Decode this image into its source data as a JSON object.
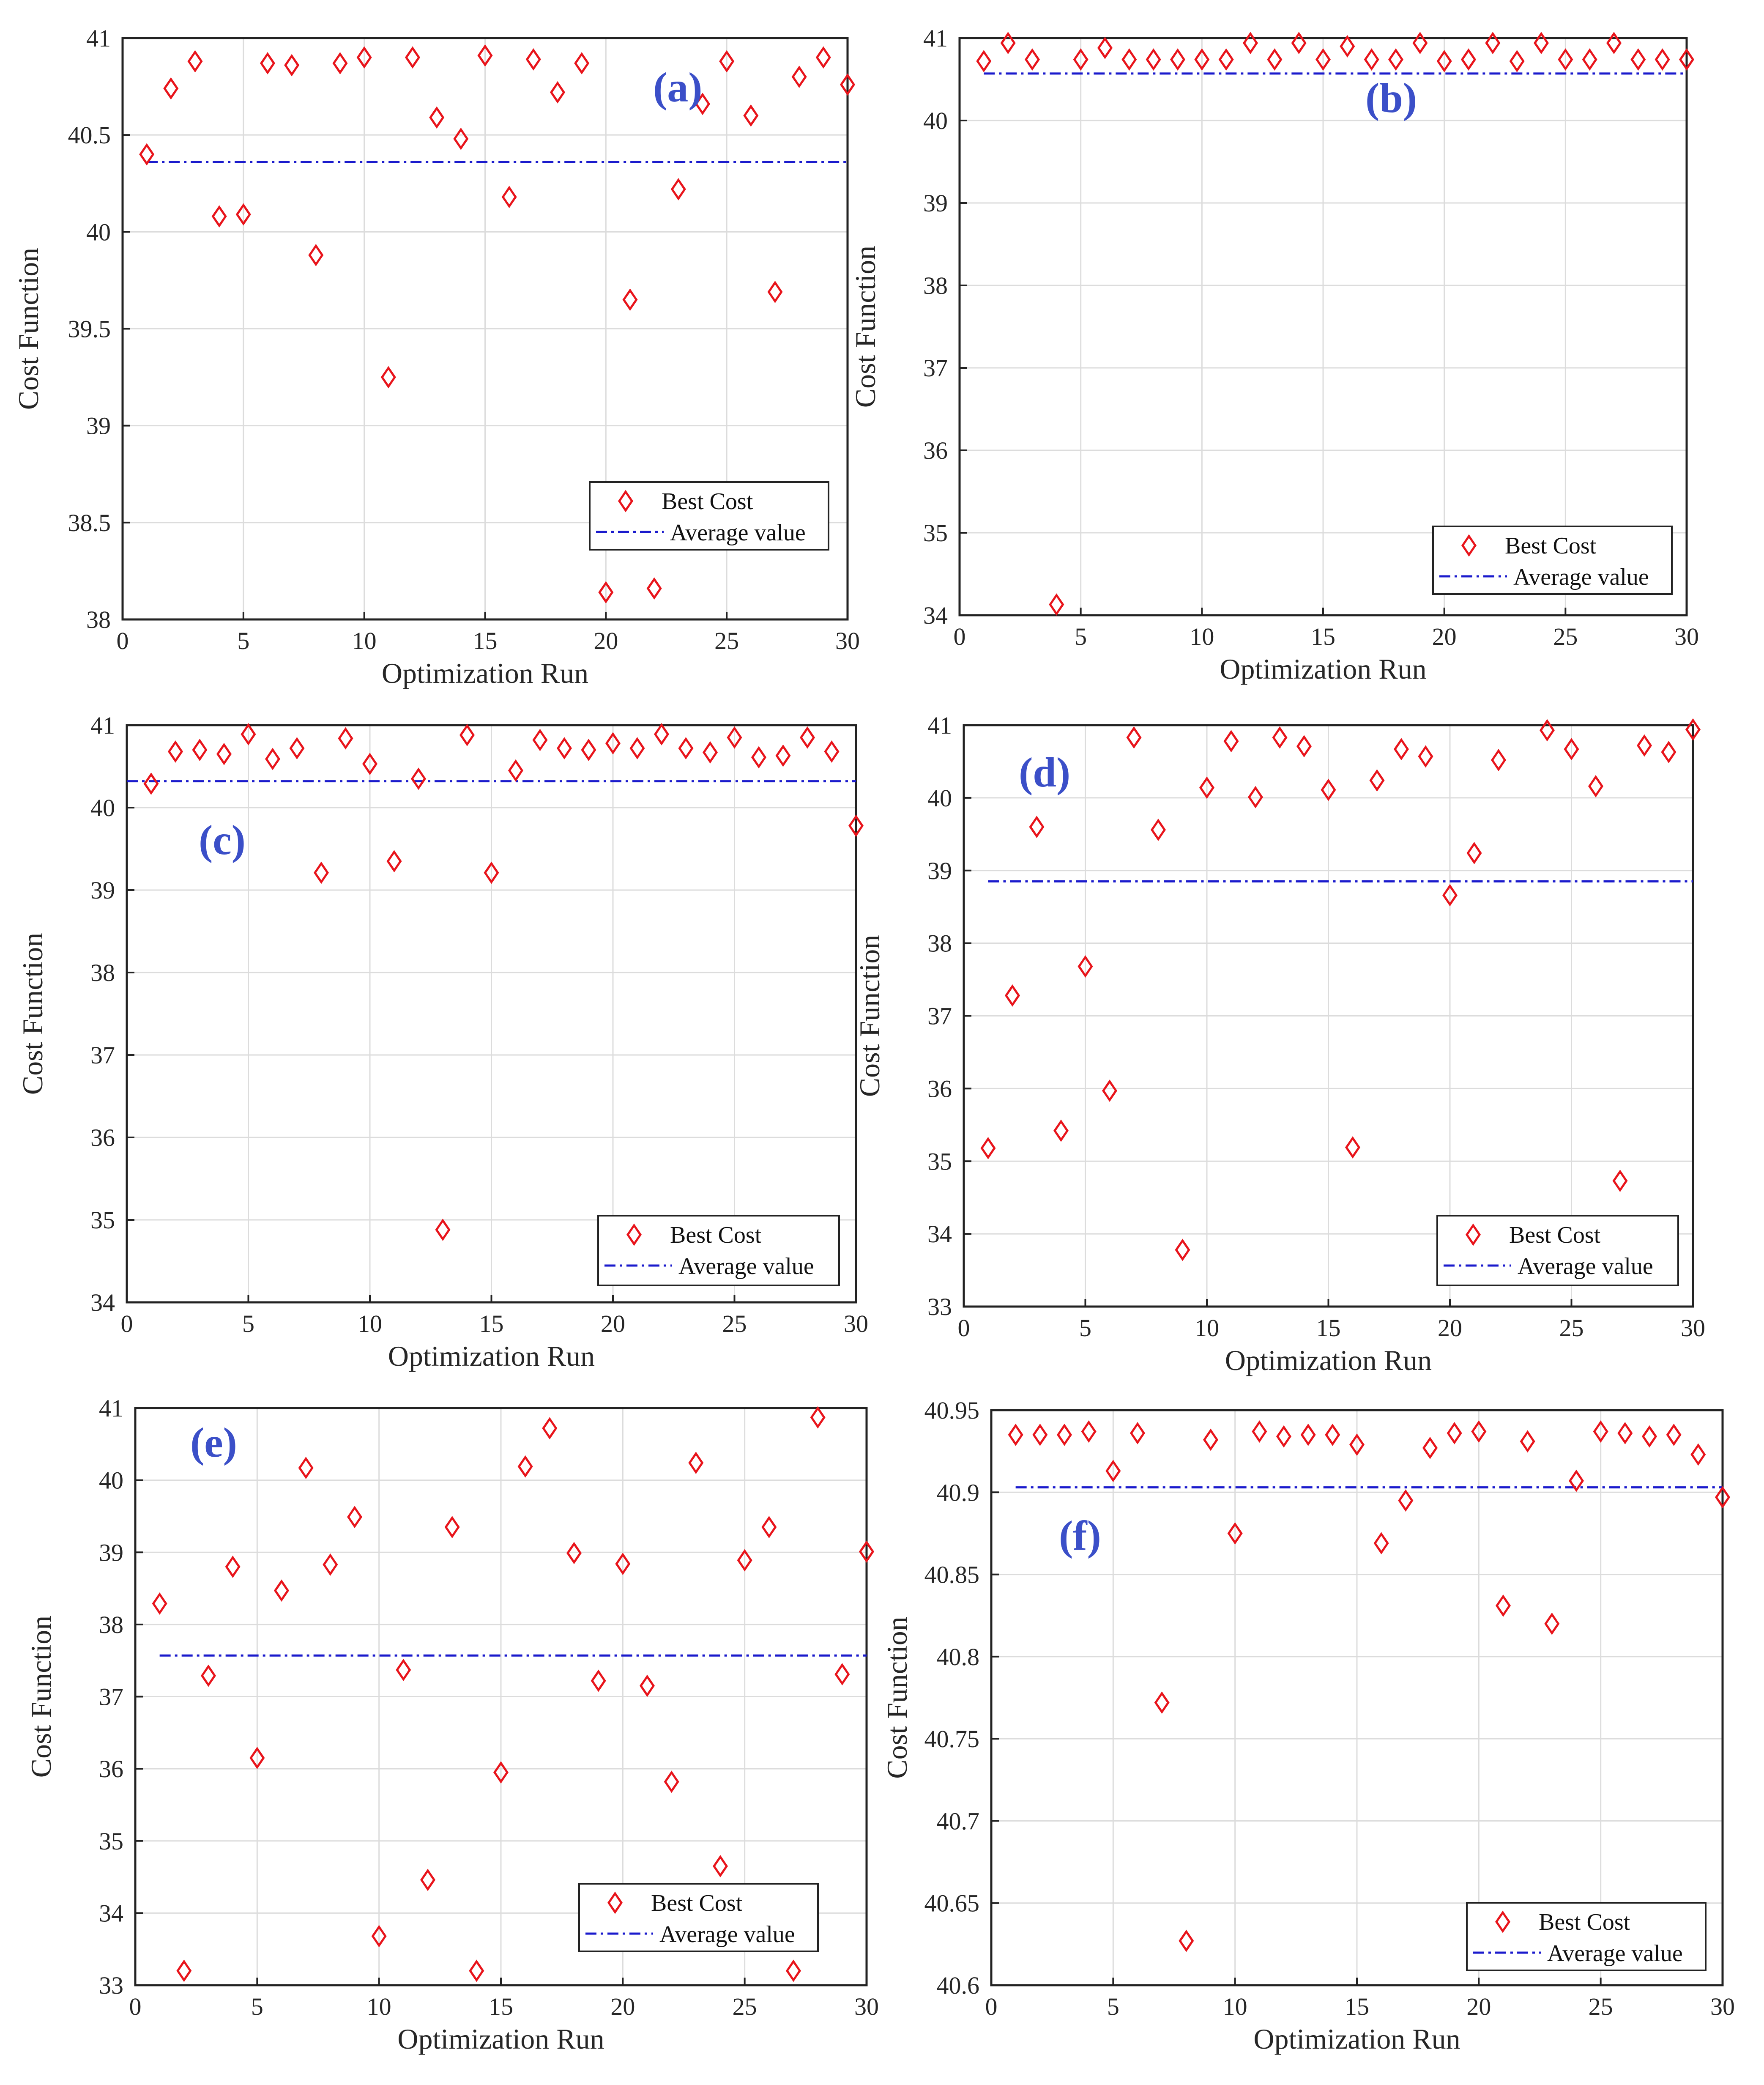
{
  "colors": {
    "best_cost": "#e8141b",
    "average": "#1a1acc"
  },
  "chart_data": [
    {
      "type": "scatter",
      "panel_label": "(a)",
      "xlabel": "Optimization Run",
      "ylabel": "Cost Function",
      "xlim": [
        0,
        30
      ],
      "ylim": [
        38,
        41
      ],
      "xticks": [
        0,
        5,
        10,
        15,
        20,
        25,
        30
      ],
      "yticks": [
        38,
        38.5,
        39,
        39.5,
        40,
        40.5,
        41
      ],
      "ytick_labels": [
        "38",
        "38.5",
        "39",
        "39.5",
        "40",
        "40.5",
        "41"
      ],
      "grid": true,
      "legend_position": "bottom-right",
      "legend": [
        "Best Cost",
        "Average value"
      ],
      "x": [
        1,
        2,
        3,
        4,
        5,
        6,
        7,
        8,
        9,
        10,
        11,
        12,
        13,
        14,
        15,
        16,
        17,
        18,
        19,
        20,
        21,
        22,
        23,
        24,
        25,
        26,
        27,
        28,
        29,
        30
      ],
      "best_cost": [
        40.4,
        40.74,
        40.88,
        40.08,
        40.09,
        40.87,
        40.86,
        39.88,
        40.87,
        40.9,
        39.25,
        40.9,
        40.59,
        40.48,
        40.91,
        40.18,
        40.89,
        40.72,
        40.87,
        38.14,
        39.65,
        38.16,
        40.22,
        40.66,
        40.88,
        40.6,
        39.69,
        40.8,
        40.9,
        40.76
      ],
      "average_value": 40.36,
      "average_x_range": [
        1,
        30
      ]
    },
    {
      "type": "scatter",
      "panel_label": "(b)",
      "xlabel": "Optimization Run",
      "ylabel": "Cost Function",
      "xlim": [
        0,
        30
      ],
      "ylim": [
        34,
        41
      ],
      "xticks": [
        0,
        5,
        10,
        15,
        20,
        25,
        30
      ],
      "yticks": [
        34,
        35,
        36,
        37,
        38,
        39,
        40,
        41
      ],
      "ytick_labels": [
        "34",
        "35",
        "36",
        "37",
        "38",
        "39",
        "40",
        "41"
      ],
      "grid": true,
      "legend_position": "bottom-right",
      "legend": [
        "Best Cost",
        "Average value"
      ],
      "x": [
        1,
        2,
        3,
        4,
        5,
        6,
        7,
        8,
        9,
        10,
        11,
        12,
        13,
        14,
        15,
        16,
        17,
        18,
        19,
        20,
        21,
        22,
        23,
        24,
        25,
        26,
        27,
        28,
        29,
        30
      ],
      "best_cost": [
        40.72,
        40.94,
        40.74,
        34.13,
        40.74,
        40.88,
        40.74,
        40.74,
        40.74,
        40.74,
        40.74,
        40.94,
        40.74,
        40.94,
        40.74,
        40.9,
        40.74,
        40.74,
        40.94,
        40.72,
        40.74,
        40.94,
        40.72,
        40.94,
        40.74,
        40.74,
        40.94,
        40.74,
        40.74,
        40.74
      ],
      "average_value": 40.57,
      "average_x_range": [
        1,
        30
      ]
    },
    {
      "type": "scatter",
      "panel_label": "(c)",
      "xlabel": "Optimization Run",
      "ylabel": "Cost Function",
      "xlim": [
        0,
        30
      ],
      "ylim": [
        34,
        41
      ],
      "xticks": [
        0,
        5,
        10,
        15,
        20,
        25,
        30
      ],
      "yticks": [
        34,
        35,
        36,
        37,
        38,
        39,
        40,
        41
      ],
      "ytick_labels": [
        "34",
        "35",
        "36",
        "37",
        "38",
        "39",
        "40",
        "41"
      ],
      "grid": true,
      "legend_position": "bottom-right",
      "legend": [
        "Best Cost",
        "Average value"
      ],
      "x": [
        1,
        2,
        3,
        4,
        5,
        6,
        7,
        8,
        9,
        10,
        11,
        12,
        13,
        14,
        15,
        16,
        17,
        18,
        19,
        20,
        21,
        22,
        23,
        24,
        25,
        26,
        27,
        28,
        29,
        30
      ],
      "best_cost": [
        40.29,
        40.68,
        40.7,
        40.65,
        40.89,
        40.59,
        40.72,
        39.21,
        40.84,
        40.53,
        39.35,
        40.35,
        34.88,
        40.88,
        39.21,
        40.45,
        40.82,
        40.72,
        40.7,
        40.78,
        40.72,
        40.89,
        40.72,
        40.67,
        40.85,
        40.61,
        40.63,
        40.85,
        40.68,
        39.78
      ],
      "average_value": 40.32,
      "average_x_range": [
        0,
        30
      ]
    },
    {
      "type": "scatter",
      "panel_label": "(d)",
      "xlabel": "Optimization Run",
      "ylabel": "Cost Function",
      "xlim": [
        0,
        30
      ],
      "ylim": [
        33,
        41
      ],
      "xticks": [
        0,
        5,
        10,
        15,
        20,
        25,
        30
      ],
      "yticks": [
        33,
        34,
        35,
        36,
        37,
        38,
        39,
        40,
        41
      ],
      "ytick_labels": [
        "33",
        "34",
        "35",
        "36",
        "37",
        "38",
        "39",
        "40",
        "41"
      ],
      "grid": true,
      "legend_position": "bottom-right",
      "legend": [
        "Best Cost",
        "Average value"
      ],
      "x": [
        1,
        2,
        3,
        4,
        5,
        6,
        7,
        8,
        9,
        10,
        11,
        12,
        13,
        14,
        15,
        16,
        17,
        18,
        19,
        20,
        21,
        22,
        23,
        24,
        25,
        26,
        27,
        28,
        29,
        30
      ],
      "best_cost": [
        35.18,
        37.28,
        39.6,
        35.42,
        37.68,
        35.97,
        40.83,
        39.56,
        33.78,
        40.14,
        40.78,
        40.01,
        40.83,
        40.71,
        40.11,
        35.19,
        40.24,
        40.67,
        40.57,
        38.66,
        39.24,
        40.52,
        null,
        40.93,
        40.67,
        40.16,
        34.73,
        40.72,
        40.63,
        40.94
      ],
      "average_value": 38.85,
      "average_x_range": [
        1,
        30
      ]
    },
    {
      "type": "scatter",
      "panel_label": "(e)",
      "xlabel": "Optimization Run",
      "ylabel": "Cost Function",
      "xlim": [
        0,
        30
      ],
      "ylim": [
        33,
        41
      ],
      "xticks": [
        0,
        5,
        10,
        15,
        20,
        25,
        30
      ],
      "yticks": [
        33,
        34,
        35,
        36,
        37,
        38,
        39,
        40,
        41
      ],
      "ytick_labels": [
        "33",
        "34",
        "35",
        "36",
        "37",
        "38",
        "39",
        "40",
        "41"
      ],
      "grid": true,
      "legend_position": "bottom-right",
      "legend": [
        "Best Cost",
        "Average value"
      ],
      "x": [
        1,
        2,
        3,
        4,
        5,
        6,
        7,
        8,
        9,
        10,
        11,
        12,
        13,
        14,
        15,
        16,
        17,
        18,
        19,
        20,
        21,
        22,
        23,
        24,
        25,
        26,
        27,
        28,
        29,
        30
      ],
      "best_cost": [
        38.29,
        33.2,
        37.29,
        38.8,
        36.15,
        38.47,
        40.17,
        38.83,
        39.49,
        33.68,
        37.37,
        34.46,
        39.35,
        33.2,
        35.95,
        40.19,
        40.72,
        38.99,
        37.22,
        38.84,
        37.15,
        35.82,
        40.24,
        34.65,
        38.89,
        39.35,
        33.2,
        40.87,
        37.31,
        39.01
      ],
      "average_value": 37.57,
      "average_x_range": [
        1,
        30
      ]
    },
    {
      "type": "scatter",
      "panel_label": "(f)",
      "xlabel": "Optimization Run",
      "ylabel": "Cost Function",
      "xlim": [
        0,
        30
      ],
      "ylim": [
        40.6,
        40.95
      ],
      "xticks": [
        0,
        5,
        10,
        15,
        20,
        25,
        30
      ],
      "yticks": [
        40.6,
        40.65,
        40.7,
        40.75,
        40.8,
        40.85,
        40.9,
        40.95
      ],
      "ytick_labels": [
        "40.6",
        "40.65",
        "40.7",
        "40.75",
        "40.8",
        "40.85",
        "40.9",
        "40.95"
      ],
      "grid": true,
      "legend_position": "bottom-right",
      "legend": [
        "Best Cost",
        "Average value"
      ],
      "x": [
        1,
        2,
        3,
        4,
        5,
        6,
        7,
        8,
        9,
        10,
        11,
        12,
        13,
        14,
        15,
        16,
        17,
        18,
        19,
        20,
        21,
        22,
        23,
        24,
        25,
        26,
        27,
        28,
        29,
        30
      ],
      "best_cost": [
        40.935,
        40.935,
        40.935,
        40.937,
        40.913,
        40.936,
        40.772,
        40.627,
        40.932,
        40.875,
        40.937,
        40.934,
        40.935,
        40.935,
        40.929,
        40.869,
        40.895,
        40.927,
        40.936,
        40.937,
        40.831,
        40.931,
        40.82,
        40.907,
        40.937,
        40.936,
        40.934,
        40.935,
        40.923,
        40.897
      ],
      "average_value": 40.903,
      "average_x_range": [
        1,
        30
      ]
    }
  ]
}
